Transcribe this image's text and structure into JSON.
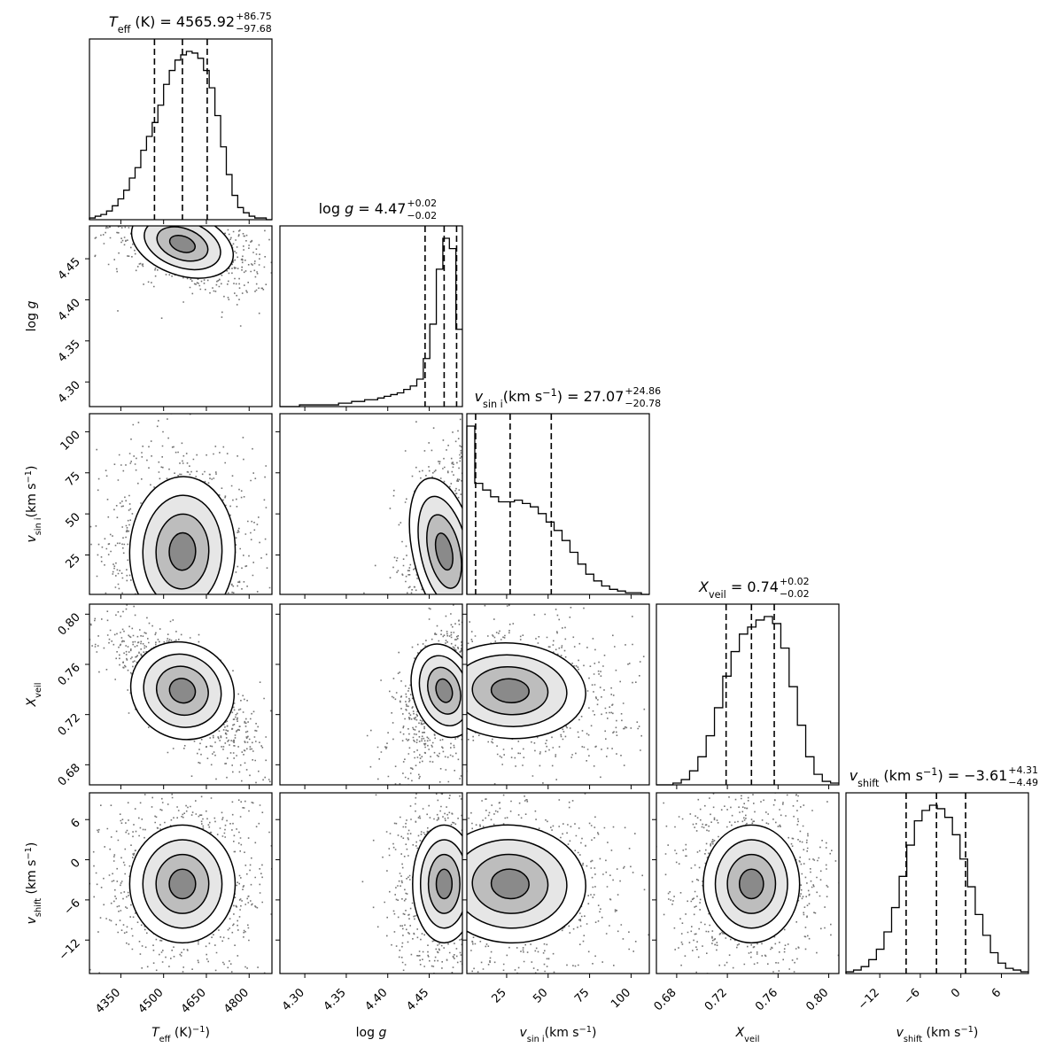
{
  "chart_data": {
    "type": "corner",
    "parameters": [
      {
        "key": "teff",
        "label_main": "T",
        "label_sub": "eff",
        "label_unit": " (K)",
        "title_prefix": " (K) = ",
        "median": "4565.92",
        "plus": "+86.75",
        "minus": "−97.68",
        "range": [
          4240,
          4880
        ],
        "ticks": [
          4350,
          4500,
          4650,
          4800
        ],
        "tick_labels": [
          "4350",
          "4500",
          "4650",
          "4800"
        ],
        "quantiles": [
          4468,
          4566,
          4653
        ],
        "hist": [
          1,
          2,
          3,
          5,
          8,
          12,
          17,
          24,
          30,
          40,
          48,
          56,
          66,
          78,
          86,
          92,
          95,
          97,
          96,
          93,
          86,
          76,
          60,
          42,
          26,
          14,
          7,
          4,
          2,
          1,
          1,
          0
        ]
      },
      {
        "key": "logg",
        "label_main": "log ",
        "label_sub": "",
        "label_italic": "g",
        "label_unit": "",
        "title_prefix": " = ",
        "median": "4.47",
        "plus": "+0.02",
        "minus": "−0.02",
        "range": [
          4.27,
          4.49
        ],
        "ticks": [
          4.3,
          4.35,
          4.4,
          4.45
        ],
        "tick_labels": [
          "4.30",
          "4.35",
          "4.40",
          "4.45"
        ],
        "quantiles": [
          4.445,
          4.468,
          4.483
        ],
        "hist": [
          0,
          0,
          0,
          1,
          1,
          1,
          1,
          1,
          1,
          2,
          2,
          3,
          3,
          4,
          4,
          5,
          6,
          7,
          8,
          10,
          12,
          16,
          28,
          48,
          80,
          98,
          92,
          45
        ]
      },
      {
        "key": "vsini",
        "label_main": "v",
        "label_sub": "sin i",
        "label_unit": "(km s",
        "title_prefix": "(km s",
        "median": "27.07",
        "plus": "+24.86",
        "minus": "−20.78",
        "range": [
          1,
          111
        ],
        "ticks": [
          25,
          50,
          75,
          100
        ],
        "tick_labels": [
          "25",
          "50",
          "75",
          "100"
        ],
        "quantiles": [
          6.3,
          27.1,
          51.9
        ],
        "hist": [
          100,
          66,
          62,
          58,
          55,
          55,
          56,
          54,
          52,
          48,
          43,
          38,
          32,
          25,
          18,
          12,
          8,
          5,
          3,
          2,
          1,
          1,
          0
        ]
      },
      {
        "key": "xveil",
        "label_main": "X",
        "label_sub": "veil",
        "label_unit": "",
        "title_prefix": " = ",
        "median": "0.74",
        "plus": "+0.02",
        "minus": "−0.02",
        "range": [
          0.664,
          0.808
        ],
        "ticks": [
          0.68,
          0.72,
          0.76,
          0.8
        ],
        "tick_labels": [
          "0.68",
          "0.72",
          "0.76",
          "0.80"
        ],
        "quantiles": [
          0.719,
          0.739,
          0.757
        ],
        "hist": [
          0,
          0,
          1,
          3,
          8,
          16,
          28,
          44,
          62,
          76,
          86,
          90,
          94,
          96,
          92,
          78,
          56,
          34,
          16,
          6,
          2,
          1
        ]
      },
      {
        "key": "vshift",
        "label_main": "v",
        "label_sub": "shift",
        "label_unit": " (km s",
        "title_prefix": " (km s",
        "median": "−3.61",
        "plus": "+4.31",
        "minus": "−4.49",
        "range": [
          -17,
          10
        ],
        "ticks": [
          -12,
          -6,
          0,
          6
        ],
        "tick_labels": [
          "−12",
          "−6",
          "0",
          "6"
        ],
        "quantiles": [
          -8.1,
          -3.61,
          0.7
        ],
        "hist": [
          1,
          2,
          4,
          8,
          14,
          24,
          38,
          56,
          74,
          88,
          94,
          97,
          95,
          90,
          80,
          66,
          50,
          34,
          22,
          12,
          6,
          3,
          2,
          1
        ]
      }
    ],
    "unit_exponent": "−1",
    "title_suffix": ") = ",
    "correlation": [
      [
        0,
        0,
        0,
        0,
        0
      ],
      [
        -0.55,
        0,
        0,
        0,
        0
      ],
      [
        -0.05,
        0.35,
        0,
        0,
        0
      ],
      [
        -0.8,
        0.45,
        -0.1,
        0,
        0
      ],
      [
        0.0,
        0.0,
        -0.1,
        0.0,
        0
      ]
    ]
  }
}
